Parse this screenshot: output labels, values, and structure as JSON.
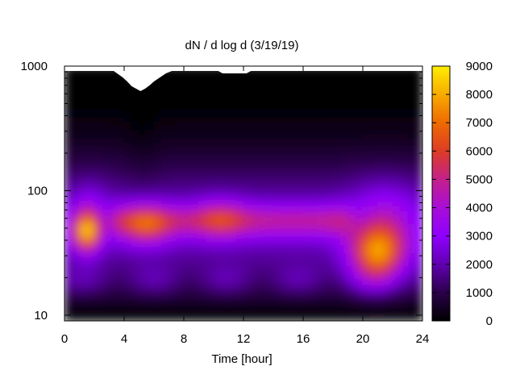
{
  "chart_data": {
    "type": "heatmap",
    "title": "dN / d log d (3/19/19)",
    "xlabel": "Time [hour]",
    "ylabel": "",
    "x_ticks": [
      0,
      4,
      8,
      12,
      16,
      20,
      24
    ],
    "xlim": [
      0,
      24
    ],
    "y_scale": "log",
    "y_ticks": [
      10,
      100,
      1000
    ],
    "ylim": [
      9,
      1000
    ],
    "colorbar": {
      "ticks": [
        0,
        1000,
        2000,
        3000,
        4000,
        5000,
        6000,
        7000,
        8000,
        9000
      ],
      "range": [
        0,
        9000
      ],
      "colormap": [
        "#000000",
        "#2b004a",
        "#6000b0",
        "#8f00ff",
        "#a80ed8",
        "#c4208a",
        "#dd3c26",
        "#ee6a00",
        "#f8ab00",
        "#ffee00"
      ]
    },
    "features": [
      {
        "description": "mode peak",
        "time_hour": 1.5,
        "diameter": 47,
        "value": 8500
      },
      {
        "description": "mode peak",
        "time_hour": 5.5,
        "diameter": 52,
        "value": 5600
      },
      {
        "description": "mode band",
        "time_hour": 10.5,
        "diameter": 60,
        "value": 4800
      },
      {
        "description": "mode peak",
        "time_hour": 21.0,
        "diameter": 31,
        "value": 8200
      }
    ],
    "grid": false,
    "legend": "colorbar-right"
  }
}
